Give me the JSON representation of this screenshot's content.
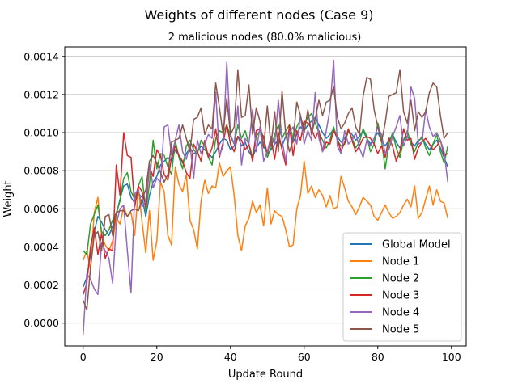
{
  "chart_data": {
    "type": "line",
    "title": "Weights of different nodes (Case 9)",
    "subtitle": "2 malicious nodes (80.0% malicious)",
    "xlabel": "Update Round",
    "ylabel": "Weight",
    "xlim": [
      -5,
      104
    ],
    "ylim": [
      -0.00012,
      0.00145
    ],
    "xticks": [
      0,
      20,
      40,
      60,
      80,
      100
    ],
    "yticks": [
      0.0,
      0.0002,
      0.0004,
      0.0006,
      0.0008,
      0.001,
      0.0012,
      0.0014
    ],
    "ytick_labels": [
      "0.0000",
      "0.0002",
      "0.0004",
      "0.0006",
      "0.0008",
      "0.0010",
      "0.0012",
      "0.0014"
    ],
    "grid": "y-axis horizontal lines",
    "legend_position": "lower-right",
    "series": [
      {
        "name": "Global Model",
        "color": "#1f77b4",
        "values": [
          0.00019,
          0.00024,
          0.00036,
          0.00048,
          0.00056,
          0.00053,
          0.00049,
          0.00046,
          0.00051,
          0.00057,
          0.00065,
          0.00072,
          0.00073,
          0.00066,
          0.00063,
          0.00068,
          0.00066,
          0.00056,
          0.00067,
          0.00074,
          0.00077,
          0.00083,
          0.00085,
          0.00087,
          0.00085,
          0.00091,
          0.00088,
          0.00084,
          0.00089,
          0.00092,
          0.00089,
          0.0009,
          0.00093,
          0.00091,
          0.00089,
          0.00087,
          0.0009,
          0.00094,
          0.00097,
          0.00096,
          0.00091,
          0.00093,
          0.00098,
          0.00093,
          0.00095,
          0.0009,
          0.00087,
          0.00092,
          0.00095,
          0.00093,
          0.00089,
          0.00091,
          0.00094,
          0.00096,
          0.00093,
          0.00098,
          0.00101,
          0.00095,
          0.00099,
          0.00103,
          0.00101,
          0.00104,
          0.00106,
          0.00108,
          0.00104,
          0.001,
          0.00097,
          0.00099,
          0.00102,
          0.00098,
          0.00095,
          0.00097,
          0.00101,
          0.00099,
          0.00096,
          0.00098,
          0.00101,
          0.00097,
          0.00094,
          0.00097,
          0.001,
          0.00096,
          0.00093,
          0.00096,
          0.00099,
          0.00095,
          0.00092,
          0.00096,
          0.00098,
          0.00095,
          0.00093,
          0.00096,
          0.00097,
          0.00094,
          0.00091,
          0.00094,
          0.00096,
          0.00092,
          0.00087,
          0.00082
        ]
      },
      {
        "name": "Node 1",
        "color": "#ff7f0e",
        "values": [
          0.00033,
          0.00038,
          0.00028,
          0.00058,
          0.00066,
          0.00046,
          0.00041,
          0.00038,
          0.00043,
          0.00055,
          0.00052,
          0.00061,
          0.00056,
          0.00058,
          0.00046,
          0.00071,
          0.00053,
          0.00037,
          0.00059,
          0.00033,
          0.00043,
          0.00074,
          0.00069,
          0.00046,
          0.00041,
          0.00082,
          0.00073,
          0.00069,
          0.00078,
          0.00054,
          0.00049,
          0.00039,
          0.00064,
          0.00075,
          0.00068,
          0.00072,
          0.00071,
          0.00084,
          0.00077,
          0.0008,
          0.00082,
          0.00067,
          0.00046,
          0.00038,
          0.00051,
          0.00055,
          0.00064,
          0.00058,
          0.00062,
          0.00051,
          0.00071,
          0.00052,
          0.00059,
          0.00057,
          0.00056,
          0.00049,
          0.0004,
          0.00041,
          0.0006,
          0.00067,
          0.00085,
          0.00068,
          0.00072,
          0.00066,
          0.0007,
          0.00067,
          0.00061,
          0.00067,
          0.0006,
          0.00061,
          0.00077,
          0.00071,
          0.00064,
          0.00061,
          0.00057,
          0.00061,
          0.00066,
          0.00064,
          0.00062,
          0.00056,
          0.00054,
          0.00058,
          0.00062,
          0.00058,
          0.00055,
          0.00056,
          0.00058,
          0.00062,
          0.00065,
          0.00061,
          0.00072,
          0.00055,
          0.00058,
          0.00065,
          0.00072,
          0.00062,
          0.0007,
          0.00064,
          0.00063,
          0.00055
        ]
      },
      {
        "name": "Node 2",
        "color": "#2ca02c",
        "values": [
          0.00038,
          0.00036,
          0.00052,
          0.00057,
          0.00062,
          0.00048,
          0.00046,
          0.00049,
          0.00054,
          0.00058,
          0.00064,
          0.00076,
          0.00079,
          0.00069,
          0.00065,
          0.00072,
          0.00077,
          0.00059,
          0.00073,
          0.00096,
          0.00081,
          0.00089,
          0.00088,
          0.00082,
          0.00078,
          0.00096,
          0.00087,
          0.00081,
          0.00093,
          0.00096,
          0.00091,
          0.00089,
          0.00096,
          0.00093,
          0.00087,
          0.00083,
          0.00097,
          0.00101,
          0.001,
          0.00104,
          0.00098,
          0.00094,
          0.00104,
          0.00097,
          0.00101,
          0.00094,
          0.00087,
          0.00098,
          0.00101,
          0.00098,
          0.00087,
          0.00092,
          0.00099,
          0.00104,
          0.00097,
          0.00101,
          0.00104,
          0.00097,
          0.00103,
          0.00107,
          0.00104,
          0.00108,
          0.0011,
          0.00105,
          0.001,
          0.00096,
          0.00092,
          0.00096,
          0.00103,
          0.00096,
          0.00093,
          0.00094,
          0.00101,
          0.00097,
          0.00092,
          0.00095,
          0.00102,
          0.00098,
          0.0009,
          0.00094,
          0.00105,
          0.00096,
          0.00081,
          0.00094,
          0.001,
          0.00092,
          0.00087,
          0.00096,
          0.00101,
          0.00094,
          0.0009,
          0.00095,
          0.00098,
          0.00092,
          0.00088,
          0.00094,
          0.00099,
          0.0009,
          0.00084,
          0.00093
        ]
      },
      {
        "name": "Node 3",
        "color": "#d62728",
        "values": [
          0.00015,
          0.00021,
          0.0004,
          0.0005,
          0.00036,
          0.00047,
          0.00034,
          0.00039,
          0.00038,
          0.00083,
          0.00067,
          0.001,
          0.00088,
          0.00087,
          0.00061,
          0.00072,
          0.00069,
          0.00061,
          0.00082,
          0.00077,
          0.00091,
          0.00088,
          0.00078,
          0.00075,
          0.00087,
          0.00093,
          0.00088,
          0.00085,
          0.00079,
          0.00076,
          0.00094,
          0.0009,
          0.00085,
          0.00096,
          0.00087,
          0.00092,
          0.00102,
          0.00087,
          0.00095,
          0.00104,
          0.00094,
          0.0009,
          0.00098,
          0.00096,
          0.00091,
          0.00094,
          0.00085,
          0.00101,
          0.00102,
          0.00097,
          0.00089,
          0.00097,
          0.00086,
          0.001,
          0.00091,
          0.00083,
          0.00104,
          0.00088,
          0.00101,
          0.00096,
          0.00106,
          0.00105,
          0.00102,
          0.00097,
          0.00101,
          0.0009,
          0.00095,
          0.00094,
          0.00101,
          0.00097,
          0.0009,
          0.00095,
          0.00102,
          0.00096,
          0.0009,
          0.00093,
          0.00097,
          0.00098,
          0.00097,
          0.00094,
          0.00089,
          0.00093,
          0.00087,
          0.00097,
          0.00093,
          0.00085,
          0.0009,
          0.00102,
          0.00096,
          0.00097,
          0.00086,
          0.00092,
          0.00095,
          0.00097,
          0.00094,
          0.00091,
          0.00093,
          0.00096,
          0.00088,
          0.00089
        ]
      },
      {
        "name": "Node 4",
        "color": "#9467bd",
        "values": [
          -6e-05,
          0.00026,
          0.00023,
          0.00018,
          0.00015,
          0.00042,
          0.00038,
          0.00034,
          0.00021,
          0.00052,
          0.0006,
          0.00062,
          0.00038,
          0.00016,
          0.00068,
          0.0007,
          0.00061,
          0.00064,
          0.00084,
          0.00071,
          0.00076,
          0.00074,
          0.00103,
          0.00104,
          0.00088,
          0.00096,
          0.00104,
          0.0009,
          0.00086,
          0.00094,
          0.00076,
          0.00096,
          0.00089,
          0.00094,
          0.00099,
          0.00097,
          0.00121,
          0.00088,
          0.00093,
          0.00137,
          0.00099,
          0.00094,
          0.00114,
          0.00083,
          0.00097,
          0.00094,
          0.00112,
          0.0009,
          0.00103,
          0.00085,
          0.0009,
          0.00098,
          0.00094,
          0.00117,
          0.00096,
          0.00085,
          0.001,
          0.00103,
          0.00094,
          0.00109,
          0.00094,
          0.00101,
          0.00096,
          0.00121,
          0.00097,
          0.0009,
          0.00101,
          0.00112,
          0.00138,
          0.00093,
          0.00089,
          0.00101,
          0.00094,
          0.00096,
          0.001,
          0.00092,
          0.00087,
          0.00096,
          0.00093,
          0.00097,
          0.00103,
          0.00099,
          0.00089,
          0.00091,
          0.00098,
          0.00103,
          0.00109,
          0.00093,
          0.00098,
          0.00124,
          0.00118,
          0.00094,
          0.00095,
          0.00112,
          0.00103,
          0.00098,
          0.001,
          0.00096,
          0.0009,
          0.00074
        ]
      },
      {
        "name": "Node 5",
        "color": "#8c564b",
        "values": [
          0.00012,
          7e-05,
          0.00029,
          0.00046,
          0.00048,
          0.00038,
          0.00056,
          0.00057,
          0.00046,
          0.00058,
          0.00059,
          0.00059,
          0.00056,
          0.00059,
          0.0006,
          0.00059,
          0.00065,
          0.0007,
          0.00085,
          0.00088,
          0.00084,
          0.00079,
          0.00074,
          0.00078,
          0.00095,
          0.00096,
          0.00097,
          0.00104,
          0.00097,
          0.0009,
          0.00107,
          0.00108,
          0.00113,
          0.00099,
          0.00104,
          0.00102,
          0.00126,
          0.00113,
          0.00099,
          0.00118,
          0.00099,
          0.00103,
          0.00133,
          0.00108,
          0.00109,
          0.00125,
          0.00099,
          0.00113,
          0.00106,
          0.00092,
          0.00114,
          0.00093,
          0.00111,
          0.0009,
          0.00122,
          0.00099,
          0.0009,
          0.00096,
          0.00116,
          0.00109,
          0.001,
          0.00112,
          0.00099,
          0.00107,
          0.00117,
          0.00109,
          0.00116,
          0.00117,
          0.00124,
          0.00108,
          0.00102,
          0.00105,
          0.0011,
          0.00113,
          0.00103,
          0.00099,
          0.00119,
          0.00129,
          0.00128,
          0.00112,
          0.00103,
          0.00095,
          0.00105,
          0.00119,
          0.0012,
          0.00121,
          0.00133,
          0.00111,
          0.00105,
          0.00117,
          0.00101,
          0.00111,
          0.00108,
          0.00111,
          0.00121,
          0.00126,
          0.00124,
          0.00109,
          0.00097,
          0.001
        ]
      }
    ]
  }
}
